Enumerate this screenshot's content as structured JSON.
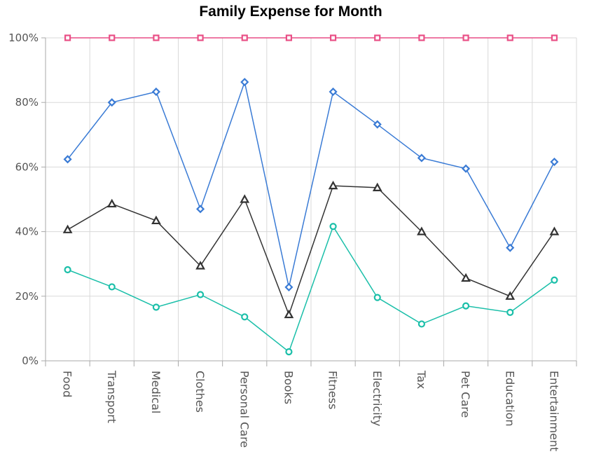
{
  "chart_data": {
    "type": "line",
    "title": "Family Expense for Month",
    "categories": [
      "Food",
      "Transport",
      "Medical",
      "Clothes",
      "Personal Care",
      "Books",
      "Fitness",
      "Electricity",
      "Tax",
      "Pet Care",
      "Education",
      "Entertainment"
    ],
    "ylim": [
      0,
      100
    ],
    "yticks": [
      "0%",
      "20%",
      "40%",
      "60%",
      "80%",
      "100%"
    ],
    "grid": true,
    "series": [
      {
        "color": "#e94f86",
        "marker": "square",
        "values": [
          100,
          100,
          100,
          100,
          100,
          100,
          100,
          100,
          100,
          100,
          100,
          100
        ]
      },
      {
        "color": "#3a7bd5",
        "marker": "diamond",
        "values": [
          62.4,
          80,
          83.3,
          47,
          86.3,
          22.8,
          83.3,
          73.2,
          62.8,
          59.5,
          35,
          61.6
        ]
      },
      {
        "color": "#333333",
        "marker": "triangle",
        "values": [
          40.6,
          48.6,
          43.4,
          29.4,
          50,
          14.3,
          54.2,
          53.6,
          40,
          25.6,
          20,
          40
        ]
      },
      {
        "color": "#1bbfa9",
        "marker": "circle",
        "values": [
          28.2,
          22.9,
          16.6,
          20.5,
          13.6,
          2.8,
          41.6,
          19.6,
          11.4,
          17,
          15,
          25
        ]
      }
    ]
  }
}
